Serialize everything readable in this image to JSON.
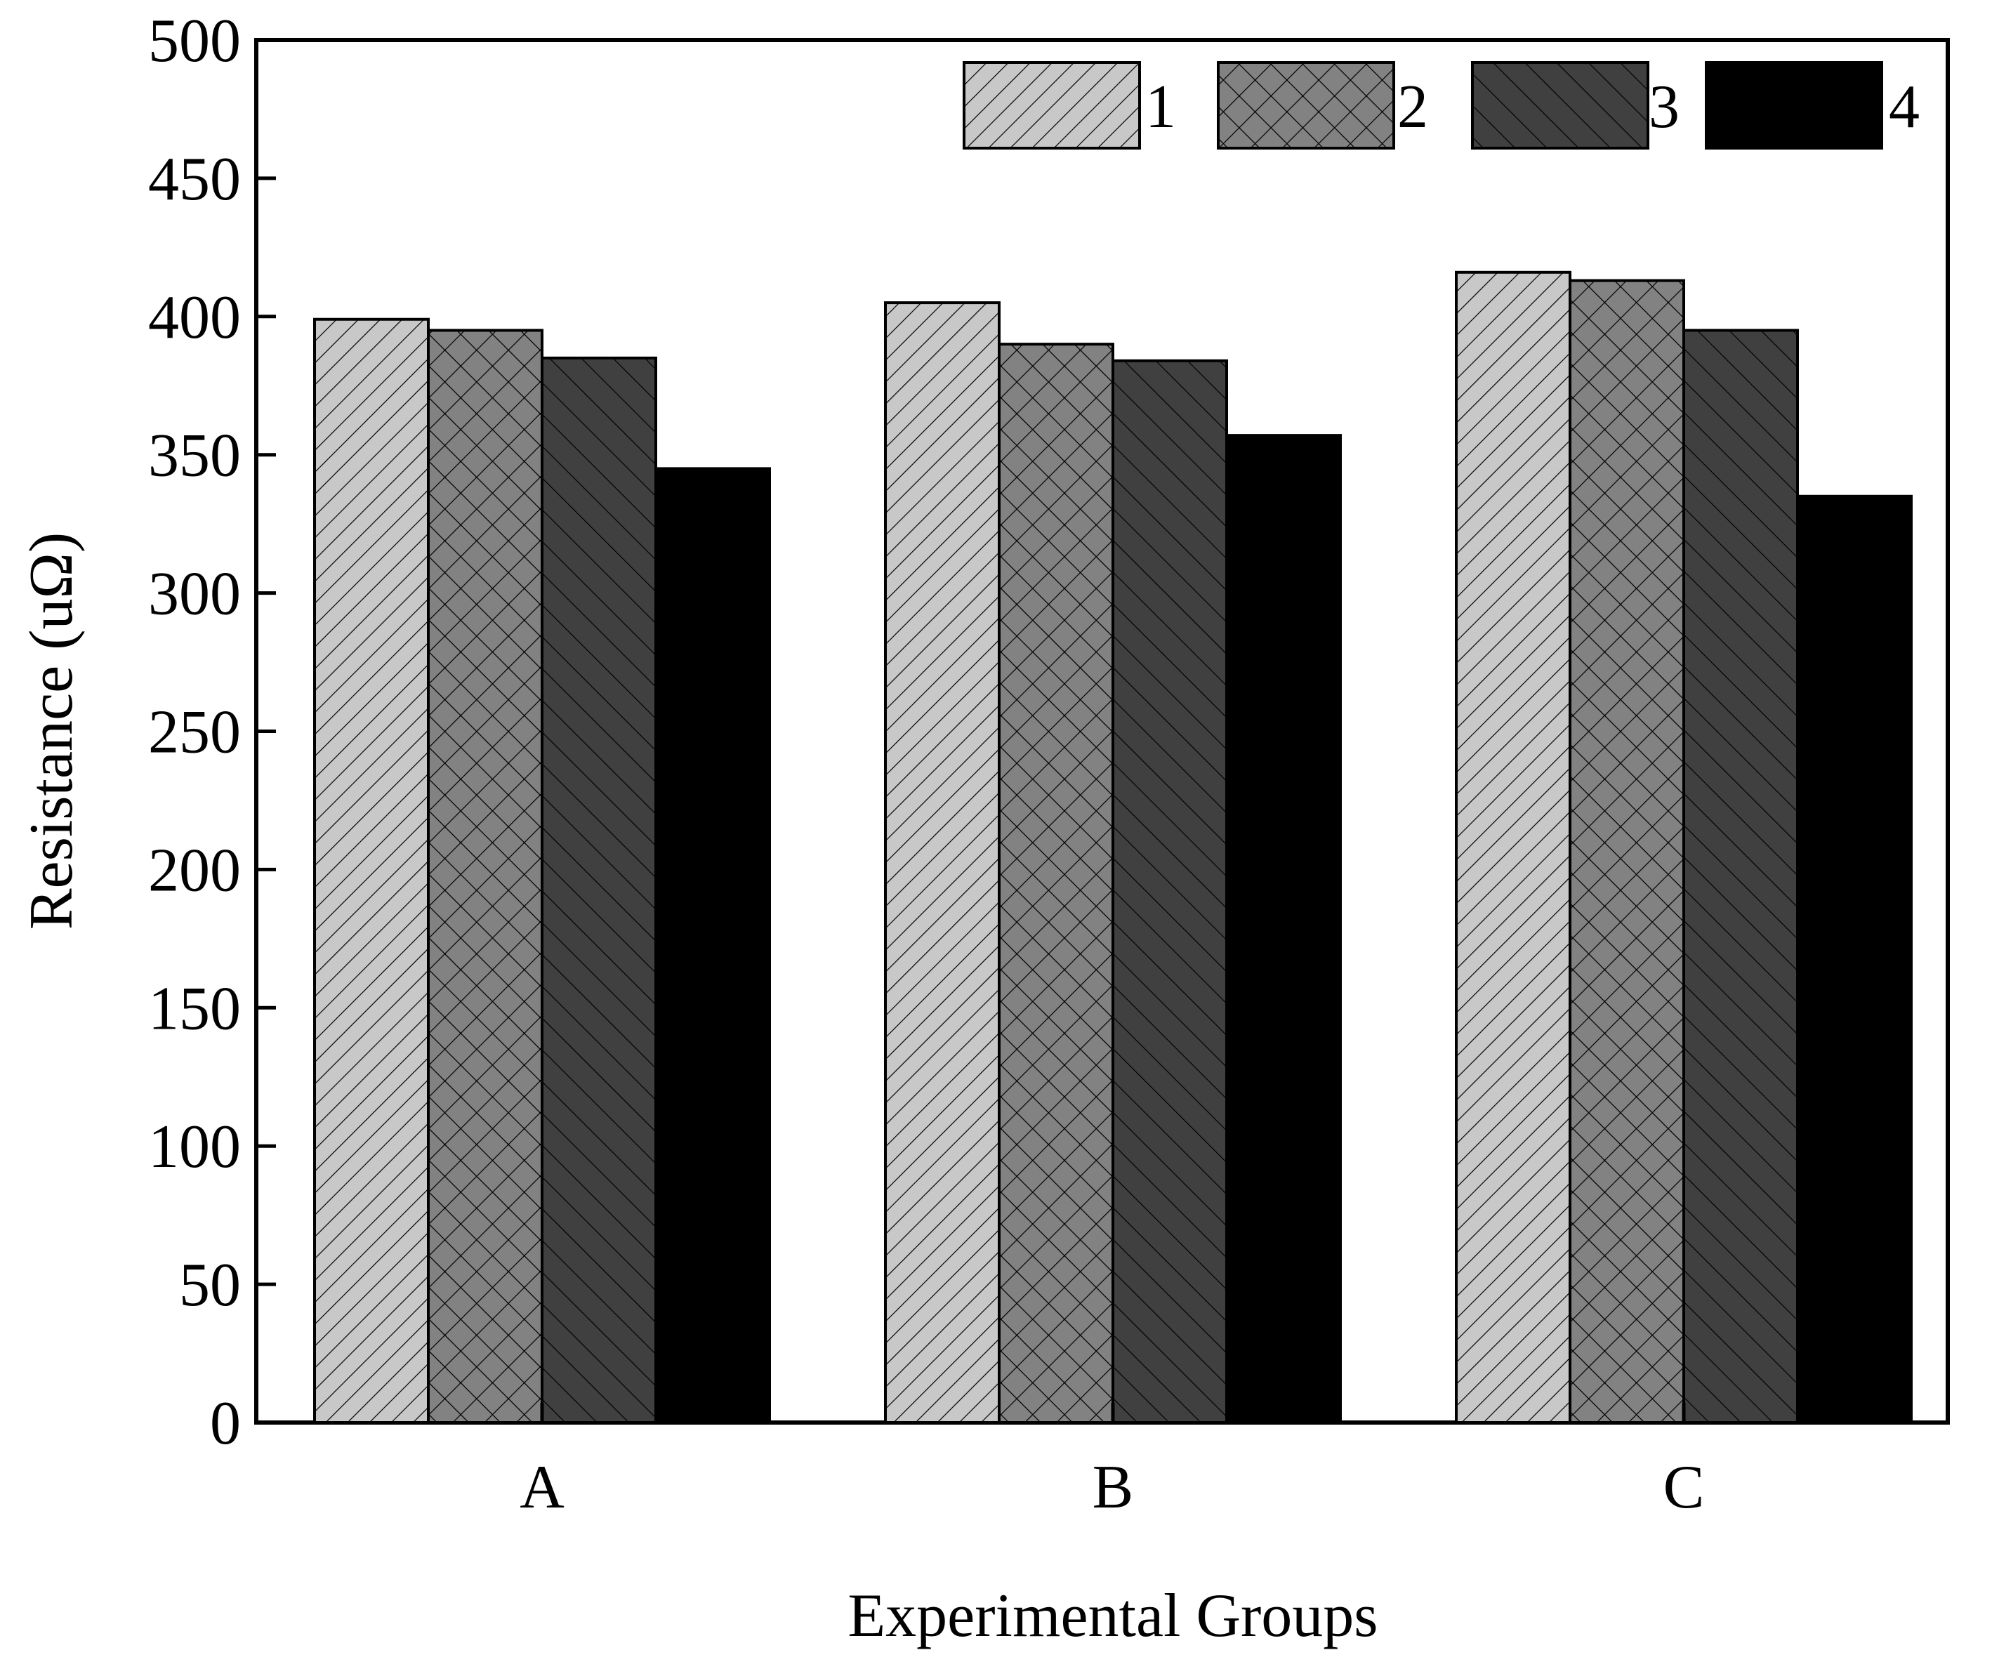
{
  "chart_data": {
    "type": "bar",
    "title": "",
    "xlabel": "Experimental Groups",
    "ylabel": "Resistance (uΩ)",
    "categories": [
      "A",
      "B",
      "C"
    ],
    "ylim": [
      0,
      500
    ],
    "yticks": [
      0,
      50,
      100,
      150,
      200,
      250,
      300,
      350,
      400,
      450,
      500
    ],
    "ytick_labels": [
      "0",
      "50",
      "100",
      "150",
      "200",
      "250",
      "300",
      "350",
      "400",
      "450",
      "500"
    ],
    "grid": false,
    "legend_position": "top-right",
    "series": [
      {
        "name": "1",
        "values": [
          399,
          405,
          416
        ],
        "fill": "#c8c8c8",
        "pattern": "forward-diagonal"
      },
      {
        "name": "2",
        "values": [
          395,
          390,
          413
        ],
        "fill": "#828282",
        "pattern": "crosshatch"
      },
      {
        "name": "3",
        "values": [
          385,
          384,
          395
        ],
        "fill": "#404040",
        "pattern": "back-diagonal"
      },
      {
        "name": "4",
        "values": [
          345,
          357,
          335
        ],
        "fill": "#000000",
        "pattern": "none"
      }
    ]
  }
}
